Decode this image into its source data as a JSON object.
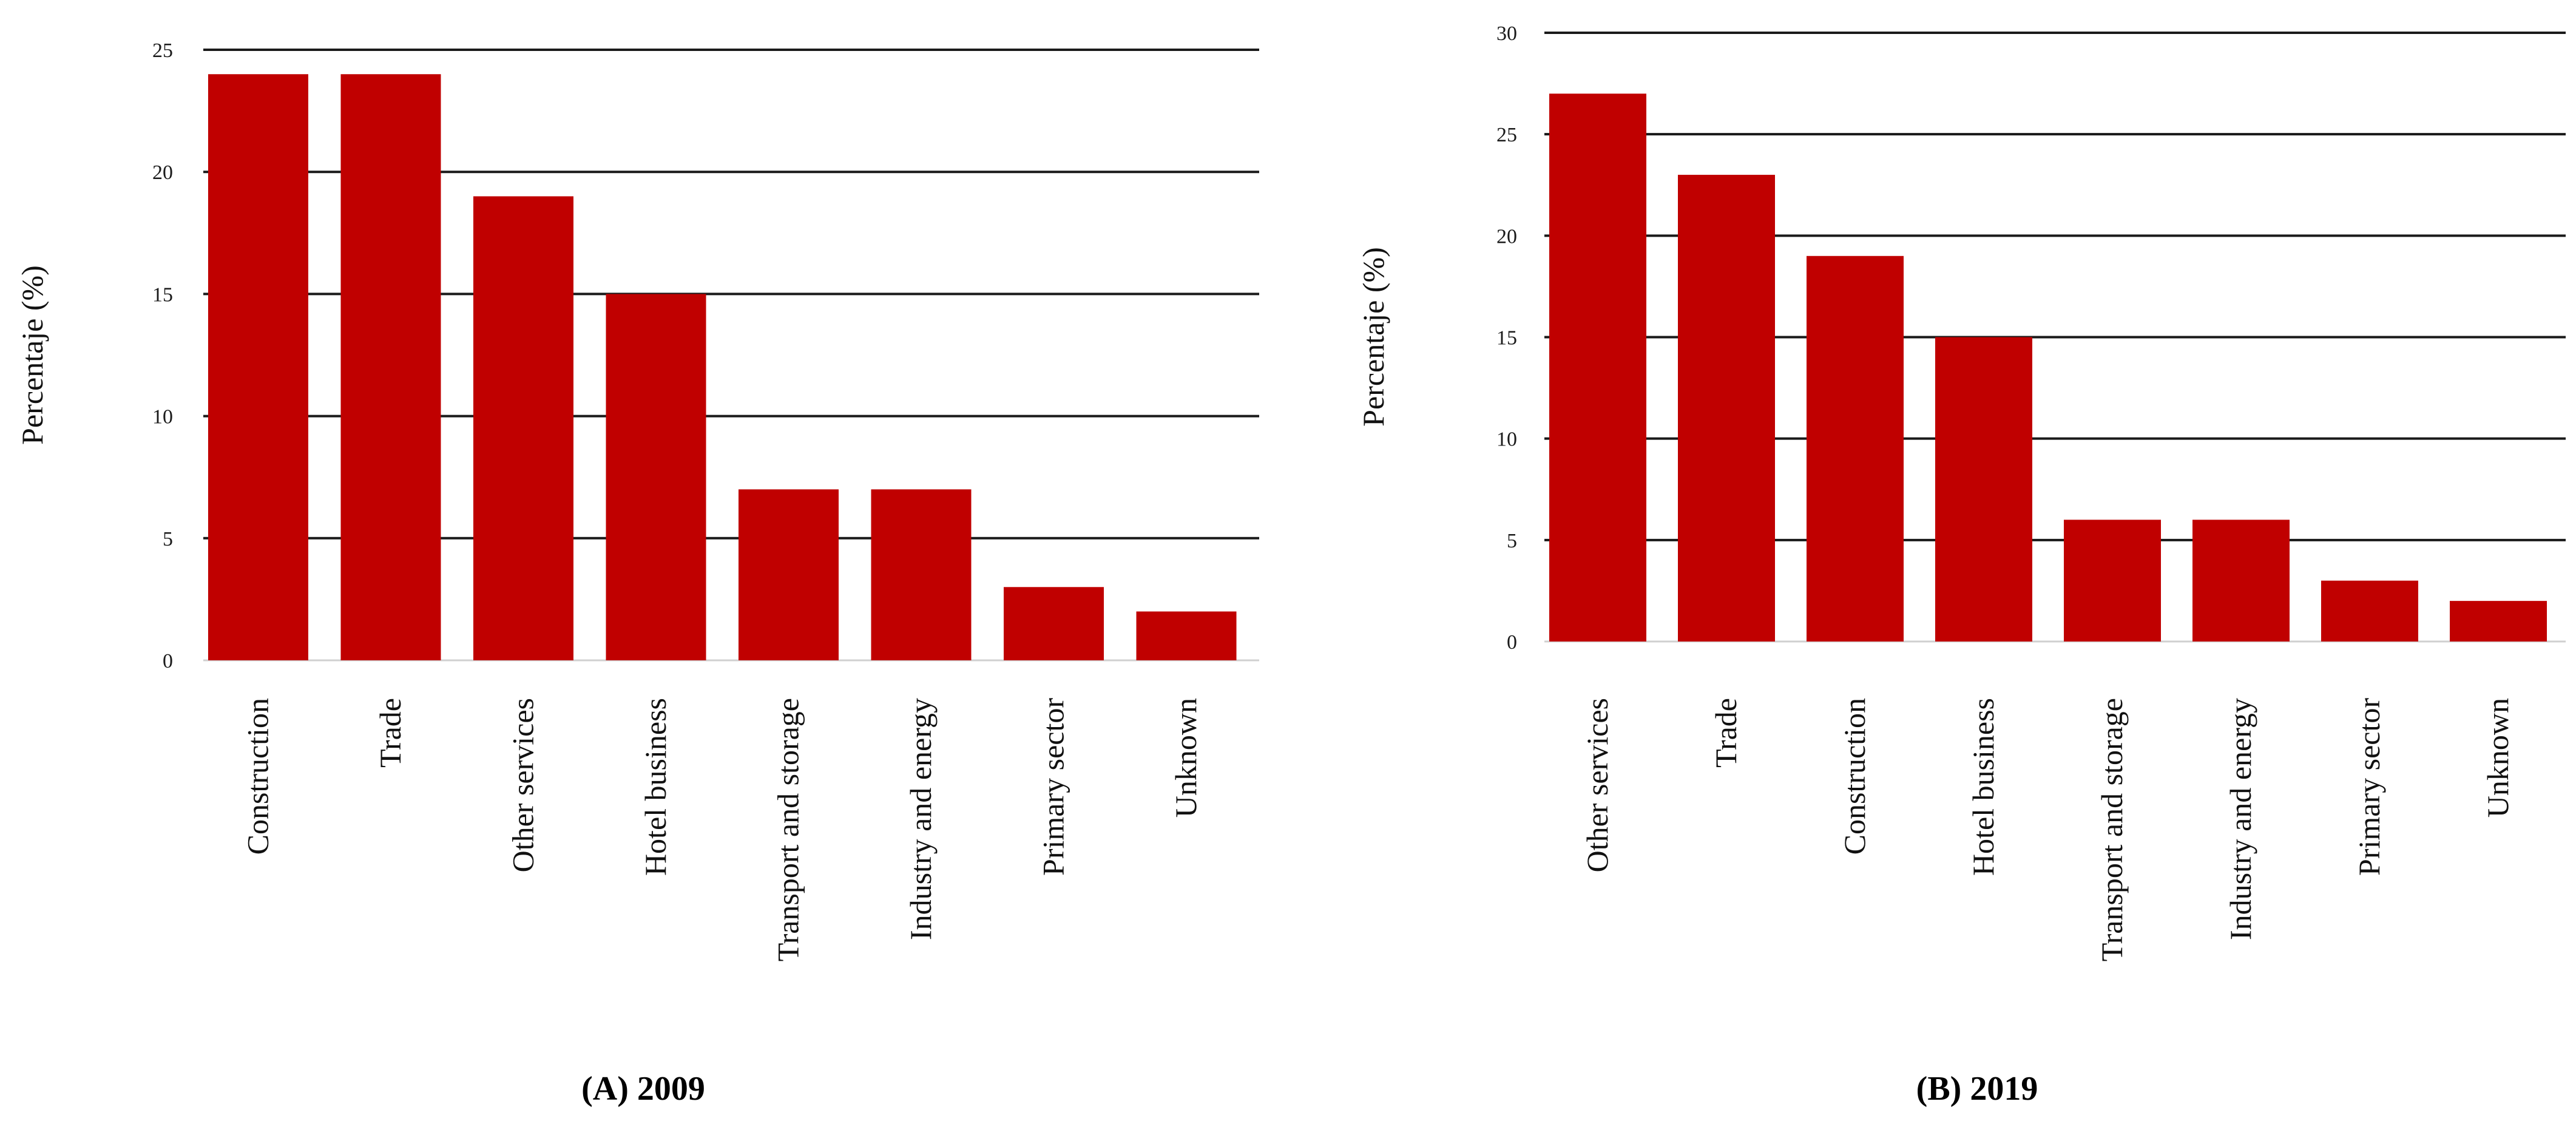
{
  "chart_data": [
    {
      "type": "bar",
      "caption": "(A) 2009",
      "ylabel": "Percentaje (%)",
      "xlabel": "",
      "ylim": [
        0,
        25
      ],
      "yticks": [
        0,
        5,
        10,
        15,
        20,
        25
      ],
      "grid": true,
      "categories": [
        "Construction",
        "Trade",
        "Other services",
        "Hotel business",
        "Transport and storage",
        "Industry and energy",
        "Primary sector",
        "Unknown"
      ],
      "values": [
        24,
        24,
        19,
        15,
        7,
        7,
        3,
        2
      ],
      "bar_color": "#c00000"
    },
    {
      "type": "bar",
      "caption": "(B) 2019",
      "ylabel": "Percentaje (%)",
      "xlabel": "",
      "ylim": [
        0,
        30
      ],
      "yticks": [
        0,
        5,
        10,
        15,
        20,
        25,
        30
      ],
      "grid": true,
      "categories": [
        "Other services",
        "Trade",
        "Construction",
        "Hotel business",
        "Transport and storage",
        "Industry and energy",
        "Primary sector",
        "Unknown"
      ],
      "values": [
        27,
        23,
        19,
        15,
        6,
        6,
        3,
        2
      ],
      "bar_color": "#c00000"
    }
  ]
}
